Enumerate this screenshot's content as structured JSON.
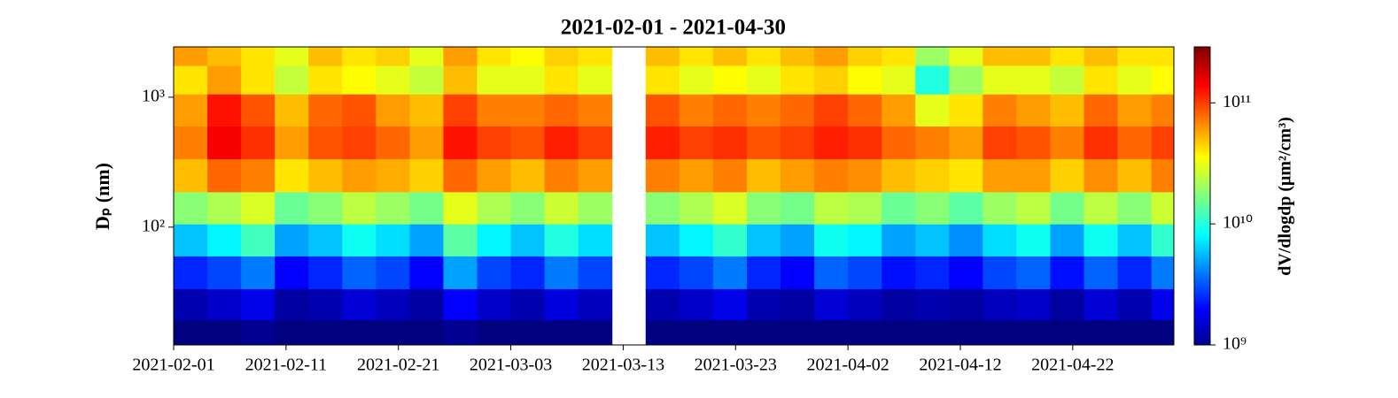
{
  "chart_data": {
    "type": "heatmap",
    "title": "2021-02-01 - 2021-04-30",
    "y_label": "Dₚ (nm)",
    "colorbar_label": "dV/dlogdp (μm²/cm³)",
    "xlim": [
      "2021-02-01",
      "2021-05-01"
    ],
    "xticks": [
      "2021-02-01",
      "2021-02-11",
      "2021-02-21",
      "2021-03-03",
      "2021-03-13",
      "2021-03-23",
      "2021-04-02",
      "2021-04-12",
      "2021-04-22"
    ],
    "ylim": [
      12.4,
      2440
    ],
    "yscale": "log",
    "yticks": [
      {
        "value": 100,
        "label": "10²"
      },
      {
        "value": 1000,
        "label": "10³"
      }
    ],
    "clim": [
      1000000000.0,
      290000000000.0
    ],
    "cscale": "log",
    "colormap": "jet",
    "cticks": [
      {
        "value": 1000000000.0,
        "label": "10⁹"
      },
      {
        "value": 10000000000.0,
        "label": "10¹⁰"
      },
      {
        "value": 100000000000.0,
        "label": "10¹¹"
      }
    ],
    "x": [
      "2021-02-01",
      "2021-02-04",
      "2021-02-07",
      "2021-02-10",
      "2021-02-13",
      "2021-02-16",
      "2021-02-19",
      "2021-02-22",
      "2021-02-25",
      "2021-02-28",
      "2021-03-03",
      "2021-03-06",
      "2021-03-09",
      "2021-03-12",
      "2021-03-15",
      "2021-03-18",
      "2021-03-21",
      "2021-03-24",
      "2021-03-27",
      "2021-03-30",
      "2021-04-02",
      "2021-04-05",
      "2021-04-08",
      "2021-04-11",
      "2021-04-14",
      "2021-04-17",
      "2021-04-20",
      "2021-04-23",
      "2021-04-26",
      "2021-04-29"
    ],
    "y": [
      15,
      25,
      45,
      80,
      140,
      250,
      450,
      800,
      1400,
      2200
    ],
    "z": [
      [
        1000000000.0,
        1000000000.0,
        1100000000.0,
        1000000000.0,
        1000000000.0,
        1000000000.0,
        1000000000.0,
        1000000000.0,
        1100000000.0,
        1000000000.0,
        1000000000.0,
        1000000000.0,
        1000000000.0,
        null,
        1000000000.0,
        1000000000.0,
        1000000000.0,
        1000000000.0,
        1000000000.0,
        1000000000.0,
        1000000000.0,
        1000000000.0,
        1000000000.0,
        1000000000.0,
        1000000000.0,
        1000000000.0,
        1000000000.0,
        1000000000.0,
        1000000000.0,
        1000000000.0
      ],
      [
        1300000000.0,
        1500000000.0,
        1800000000.0,
        1200000000.0,
        1300000000.0,
        1600000000.0,
        1400000000.0,
        1200000000.0,
        2000000000.0,
        1500000000.0,
        1300000000.0,
        1700000000.0,
        1400000000.0,
        null,
        1300000000.0,
        1500000000.0,
        1800000000.0,
        1300000000.0,
        1200000000.0,
        1600000000.0,
        1400000000.0,
        1200000000.0,
        1300000000.0,
        1200000000.0,
        1400000000.0,
        1500000000.0,
        1200000000.0,
        1600000000.0,
        1300000000.0,
        1800000000.0
      ],
      [
        2500000000.0,
        3000000000.0,
        4000000000.0,
        2000000000.0,
        2500000000.0,
        3500000000.0,
        3000000000.0,
        2000000000.0,
        5000000000.0,
        3000000000.0,
        2500000000.0,
        4000000000.0,
        3000000000.0,
        null,
        2500000000.0,
        3000000000.0,
        4000000000.0,
        2500000000.0,
        2000000000.0,
        3500000000.0,
        3000000000.0,
        2200000000.0,
        2500000000.0,
        2000000000.0,
        3000000000.0,
        3500000000.0,
        2200000000.0,
        3500000000.0,
        2500000000.0,
        4000000000.0
      ],
      [
        6000000000.0,
        8000000000.0,
        12000000000.0,
        5000000000.0,
        6000000000.0,
        9000000000.0,
        7000000000.0,
        5000000000.0,
        14000000000.0,
        8000000000.0,
        6000000000.0,
        10000000000.0,
        7000000000.0,
        null,
        6000000000.0,
        8000000000.0,
        11000000000.0,
        6000000000.0,
        5000000000.0,
        9000000000.0,
        8000000000.0,
        5000000000.0,
        6000000000.0,
        4500000000.0,
        7000000000.0,
        9000000000.0,
        5000000000.0,
        9000000000.0,
        6000000000.0,
        11000000000.0
      ],
      [
        18000000000.0,
        22000000000.0,
        28000000000.0,
        15000000000.0,
        18000000000.0,
        24000000000.0,
        20000000000.0,
        16000000000.0,
        30000000000.0,
        22000000000.0,
        18000000000.0,
        26000000000.0,
        20000000000.0,
        null,
        18000000000.0,
        22000000000.0,
        28000000000.0,
        18000000000.0,
        16000000000.0,
        24000000000.0,
        22000000000.0,
        15000000000.0,
        18000000000.0,
        14000000000.0,
        20000000000.0,
        24000000000.0,
        16000000000.0,
        24000000000.0,
        18000000000.0,
        26000000000.0
      ],
      [
        50000000000.0,
        80000000000.0,
        70000000000.0,
        40000000000.0,
        50000000000.0,
        60000000000.0,
        55000000000.0,
        45000000000.0,
        80000000000.0,
        60000000000.0,
        50000000000.0,
        70000000000.0,
        60000000000.0,
        null,
        70000000000.0,
        60000000000.0,
        70000000000.0,
        50000000000.0,
        60000000000.0,
        70000000000.0,
        65000000000.0,
        50000000000.0,
        45000000000.0,
        40000000000.0,
        60000000000.0,
        60000000000.0,
        45000000000.0,
        65000000000.0,
        50000000000.0,
        70000000000.0
      ],
      [
        70000000000.0,
        150000000000.0,
        110000000000.0,
        60000000000.0,
        90000000000.0,
        100000000000.0,
        80000000000.0,
        60000000000.0,
        130000000000.0,
        100000000000.0,
        90000000000.0,
        120000000000.0,
        100000000000.0,
        null,
        120000000000.0,
        100000000000.0,
        110000000000.0,
        90000000000.0,
        100000000000.0,
        120000000000.0,
        110000000000.0,
        80000000000.0,
        70000000000.0,
        60000000000.0,
        100000000000.0,
        90000000000.0,
        70000000000.0,
        110000000000.0,
        80000000000.0,
        100000000000.0
      ],
      [
        60000000000.0,
        130000000000.0,
        90000000000.0,
        50000000000.0,
        80000000000.0,
        90000000000.0,
        60000000000.0,
        50000000000.0,
        100000000000.0,
        70000000000.0,
        70000000000.0,
        80000000000.0,
        70000000000.0,
        null,
        90000000000.0,
        70000000000.0,
        80000000000.0,
        70000000000.0,
        80000000000.0,
        100000000000.0,
        80000000000.0,
        60000000000.0,
        30000000000.0,
        40000000000.0,
        70000000000.0,
        60000000000.0,
        50000000000.0,
        80000000000.0,
        60000000000.0,
        70000000000.0
      ],
      [
        40000000000.0,
        60000000000.0,
        40000000000.0,
        25000000000.0,
        40000000000.0,
        35000000000.0,
        30000000000.0,
        25000000000.0,
        50000000000.0,
        30000000000.0,
        30000000000.0,
        40000000000.0,
        30000000000.0,
        null,
        40000000000.0,
        30000000000.0,
        35000000000.0,
        30000000000.0,
        40000000000.0,
        45000000000.0,
        35000000000.0,
        30000000000.0,
        10000000000.0,
        20000000000.0,
        30000000000.0,
        30000000000.0,
        25000000000.0,
        40000000000.0,
        30000000000.0,
        35000000000.0
      ],
      [
        60000000000.0,
        50000000000.0,
        40000000000.0,
        30000000000.0,
        50000000000.0,
        40000000000.0,
        45000000000.0,
        30000000000.0,
        60000000000.0,
        40000000000.0,
        35000000000.0,
        45000000000.0,
        40000000000.0,
        null,
        50000000000.0,
        40000000000.0,
        50000000000.0,
        40000000000.0,
        50000000000.0,
        60000000000.0,
        45000000000.0,
        40000000000.0,
        20000000000.0,
        30000000000.0,
        50000000000.0,
        50000000000.0,
        40000000000.0,
        50000000000.0,
        40000000000.0,
        40000000000.0
      ]
    ]
  }
}
